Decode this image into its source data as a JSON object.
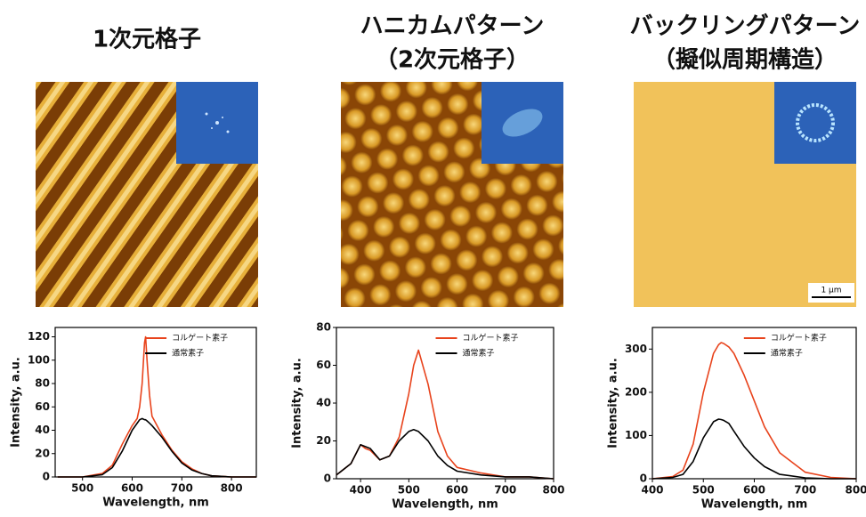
{
  "panels": [
    {
      "title": [
        "1次元格子"
      ]
    },
    {
      "title": [
        "ハニカムパターン",
        "（2次元格子）"
      ]
    },
    {
      "title": [
        "バックリングパターン",
        "（擬似周期構造）"
      ],
      "scale_label": "1 μm"
    }
  ],
  "chart_data": [
    {
      "type": "line",
      "x_label": "Wavelength, nm",
      "y_label": "Intensity, a.u.",
      "legend": "upper right",
      "xlim": [
        445,
        850
      ],
      "xticks": [
        500,
        600,
        700,
        800
      ],
      "ylim": [
        0,
        128
      ],
      "yticks": [
        0,
        20,
        40,
        60,
        80,
        100,
        120
      ],
      "x": [
        450,
        500,
        540,
        560,
        580,
        600,
        610,
        615,
        620,
        625,
        627,
        630,
        635,
        640,
        660,
        680,
        700,
        720,
        740,
        760,
        800,
        850
      ],
      "series": [
        {
          "name": "コルゲート素子",
          "color": "#e8431c",
          "values": [
            0,
            0,
            3,
            10,
            28,
            44,
            50,
            60,
            80,
            115,
            120,
            100,
            70,
            52,
            36,
            23,
            13,
            7,
            3,
            1,
            0,
            0
          ]
        },
        {
          "name": "通常素子",
          "color": "#000000",
          "values": [
            0,
            0,
            2,
            8,
            22,
            40,
            46,
            49,
            50,
            49,
            49,
            48,
            46,
            44,
            34,
            22,
            12,
            6,
            3,
            1,
            0,
            0
          ]
        }
      ]
    },
    {
      "type": "line",
      "x_label": "Wavelength, nm",
      "y_label": "Intensity, a.u.",
      "legend": "upper right",
      "xlim": [
        350,
        800
      ],
      "xticks": [
        400,
        500,
        600,
        700,
        800
      ],
      "ylim": [
        0,
        80
      ],
      "yticks": [
        0,
        20,
        40,
        60,
        80
      ],
      "x": [
        350,
        380,
        400,
        410,
        420,
        440,
        460,
        480,
        500,
        510,
        520,
        540,
        560,
        580,
        600,
        650,
        700,
        750,
        800
      ],
      "series": [
        {
          "name": "コルゲート素子",
          "color": "#e8431c",
          "values": [
            2,
            8,
            18,
            16,
            15,
            10,
            12,
            22,
            45,
            60,
            68,
            50,
            25,
            12,
            6,
            3,
            1,
            1,
            0
          ]
        },
        {
          "name": "通常素子",
          "color": "#000000",
          "values": [
            2,
            8,
            18,
            17,
            16,
            10,
            12,
            20,
            25,
            26,
            25,
            20,
            12,
            7,
            4,
            2,
            1,
            1,
            0
          ]
        }
      ]
    },
    {
      "type": "line",
      "x_label": "Wavelength, nm",
      "y_label": "Intensity, a.u.",
      "legend": "upper right",
      "xlim": [
        400,
        800
      ],
      "xticks": [
        400,
        500,
        600,
        700,
        800
      ],
      "ylim": [
        0,
        350
      ],
      "yticks": [
        0,
        100,
        200,
        300
      ],
      "x": [
        400,
        440,
        460,
        480,
        500,
        520,
        530,
        535,
        540,
        550,
        560,
        580,
        600,
        620,
        650,
        700,
        750,
        800
      ],
      "series": [
        {
          "name": "コルゲート素子",
          "color": "#e8431c",
          "values": [
            0,
            5,
            20,
            80,
            200,
            290,
            310,
            315,
            313,
            305,
            290,
            240,
            180,
            120,
            60,
            15,
            3,
            0
          ]
        },
        {
          "name": "通常素子",
          "color": "#000000",
          "values": [
            0,
            3,
            10,
            40,
            95,
            132,
            138,
            137,
            135,
            128,
            110,
            75,
            48,
            28,
            10,
            2,
            0,
            0
          ]
        }
      ]
    }
  ]
}
